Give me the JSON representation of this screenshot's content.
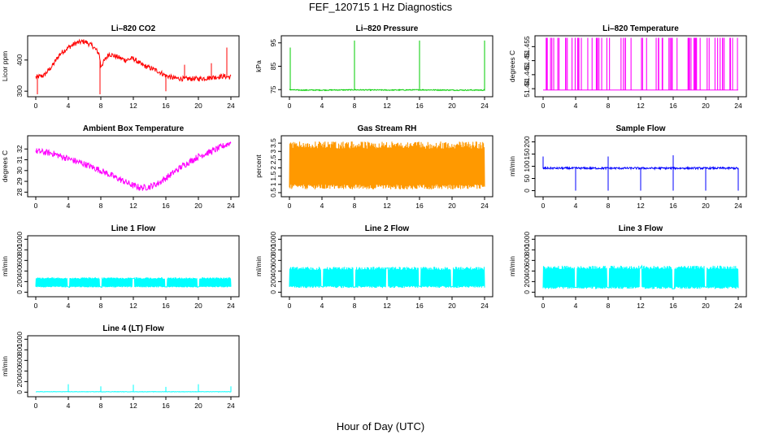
{
  "page": {
    "title": "FEF_120715  1 Hz Diagnostics",
    "xlabel": "Hour of Day (UTC)"
  },
  "chart_data": [
    {
      "id": "li820-co2",
      "type": "line",
      "title": "Li–820 CO2",
      "ylabel": "Licor ppm",
      "color": "#ff0000",
      "xlim": [
        0,
        24
      ],
      "xticks": [
        0,
        4,
        8,
        12,
        16,
        20,
        24
      ],
      "ylim": [
        290,
        470
      ],
      "yticks": [
        300,
        400
      ],
      "series": [
        {
          "x": [
            0,
            1,
            2,
            3,
            4,
            5,
            6,
            7,
            7.8,
            8,
            9,
            10,
            11,
            12,
            13,
            14,
            15,
            16,
            17,
            18,
            19,
            20,
            21,
            22,
            23,
            24
          ],
          "y": [
            345,
            350,
            380,
            420,
            440,
            455,
            460,
            445,
            420,
            380,
            420,
            410,
            400,
            405,
            385,
            375,
            365,
            350,
            342,
            340,
            340,
            340,
            342,
            345,
            348,
            345
          ]
        }
      ],
      "spikes": [
        {
          "x": 0.2,
          "y": 290
        },
        {
          "x": 7.9,
          "y": 290
        },
        {
          "x": 16,
          "y": 300
        },
        {
          "x": 18.3,
          "y": 385
        },
        {
          "x": 21.6,
          "y": 390
        },
        {
          "x": 23.5,
          "y": 440
        }
      ],
      "noise": 8
    },
    {
      "id": "li820-pressure",
      "type": "line",
      "title": "Li–820 Pressure",
      "ylabel": "kPa",
      "color": "#00cc00",
      "xlim": [
        0,
        24
      ],
      "xticks": [
        0,
        4,
        8,
        12,
        16,
        20,
        24
      ],
      "ylim": [
        73,
        97
      ],
      "yticks": [
        75,
        85,
        95
      ],
      "series": [
        {
          "x": [
            0,
            1,
            4,
            8,
            12,
            16,
            20,
            24
          ],
          "y": [
            75,
            74.8,
            74.8,
            74.9,
            74.8,
            74.9,
            74.8,
            74.8
          ]
        }
      ],
      "spikes": [
        {
          "x": 0.1,
          "y": 93
        },
        {
          "x": 8,
          "y": 96
        },
        {
          "x": 16,
          "y": 96
        },
        {
          "x": 24,
          "y": 96
        }
      ],
      "noise": 0.2
    },
    {
      "id": "li820-temperature",
      "type": "line",
      "title": "Li–820 Temperature",
      "ylabel": "degrees C",
      "color": "#ff00ff",
      "xlim": [
        0,
        24
      ],
      "xticks": [
        0,
        4,
        8,
        12,
        16,
        20,
        24
      ],
      "ylim": [
        51.438,
        51.458
      ],
      "yticks": [
        51.44,
        51.445,
        51.45,
        51.455
      ],
      "series": [
        {
          "x": [
            0,
            24
          ],
          "y": [
            51.4395,
            51.4395
          ]
        }
      ],
      "bands": {
        "low": 51.4395,
        "high": 51.4585,
        "count": 70
      },
      "noise": 0
    },
    {
      "id": "ambient-box-temperature",
      "type": "line",
      "title": "Ambient Box Temperature",
      "ylabel": "degrees C",
      "color": "#ff00ff",
      "xlim": [
        0,
        24
      ],
      "xticks": [
        0,
        4,
        8,
        12,
        16,
        20,
        24
      ],
      "ylim": [
        27.8,
        33
      ],
      "yticks": [
        28,
        29,
        30,
        31,
        32
      ],
      "series": [
        {
          "x": [
            0,
            2,
            4,
            6,
            8,
            10,
            12,
            13,
            14,
            15,
            16,
            18,
            20,
            22,
            24
          ],
          "y": [
            31.8,
            31.6,
            31.1,
            30.6,
            30.0,
            29.3,
            28.6,
            28.4,
            28.5,
            28.8,
            29.3,
            30.4,
            31.3,
            31.9,
            32.6
          ]
        }
      ],
      "noise": 0.3
    },
    {
      "id": "gas-stream-rh",
      "type": "line",
      "title": "Gas Stream RH",
      "ylabel": "percent",
      "color": "#ff9900",
      "xlim": [
        0,
        24
      ],
      "xticks": [
        0,
        4,
        8,
        12,
        16,
        20,
        24
      ],
      "ylim": [
        0.4,
        3.8
      ],
      "yticks": [
        0.5,
        1.0,
        1.5,
        2.0,
        2.5,
        3.0,
        3.5
      ],
      "series": [
        {
          "x": [
            0,
            24
          ],
          "y": [
            2.1,
            2.1
          ]
        }
      ],
      "band": {
        "low": 0.7,
        "high": 3.6
      },
      "noise": 0
    },
    {
      "id": "sample-flow",
      "type": "line",
      "title": "Sample Flow",
      "ylabel": "ml/min",
      "color": "#0000ff",
      "xlim": [
        0,
        24
      ],
      "xticks": [
        0,
        4,
        8,
        12,
        16,
        20,
        24
      ],
      "ylim": [
        -15,
        215
      ],
      "yticks": [
        0,
        50,
        100,
        150,
        200
      ],
      "series": [
        {
          "x": [
            0,
            24
          ],
          "y": [
            92,
            92
          ]
        }
      ],
      "spikes": [
        {
          "x": 0,
          "y": 140
        },
        {
          "x": 4,
          "y": 0
        },
        {
          "x": 8,
          "y": 0
        },
        {
          "x": 8,
          "y": 140
        },
        {
          "x": 12,
          "y": 0
        },
        {
          "x": 16,
          "y": 0
        },
        {
          "x": 16,
          "y": 145
        },
        {
          "x": 20,
          "y": 0
        },
        {
          "x": 24,
          "y": 0
        }
      ],
      "noise": 4
    },
    {
      "id": "line-1-flow",
      "type": "line",
      "title": "Line 1 Flow",
      "ylabel": "ml/min",
      "color": "#00ffff",
      "xlim": [
        0,
        24
      ],
      "xticks": [
        0,
        4,
        8,
        12,
        16,
        20,
        24
      ],
      "ylim": [
        -40,
        1020
      ],
      "yticks": [
        0,
        200,
        400,
        600,
        800,
        1000
      ],
      "series": [
        {
          "x": [
            0,
            24
          ],
          "y": [
            190,
            190
          ]
        }
      ],
      "band": {
        "low": 90,
        "high": 280
      },
      "gaps": [
        4,
        8,
        12,
        16,
        20
      ],
      "noise": 0
    },
    {
      "id": "line-2-flow",
      "type": "line",
      "title": "Line 2 Flow",
      "ylabel": "ml/min",
      "color": "#00ffff",
      "xlim": [
        0,
        24
      ],
      "xticks": [
        0,
        4,
        8,
        12,
        16,
        20,
        24
      ],
      "ylim": [
        -40,
        1020
      ],
      "yticks": [
        0,
        200,
        400,
        600,
        800,
        1000
      ],
      "series": [
        {
          "x": [
            0,
            24
          ],
          "y": [
            290,
            290
          ]
        }
      ],
      "band": {
        "low": 80,
        "high": 480
      },
      "gaps": [
        4,
        8,
        12,
        16,
        20
      ],
      "noise": 0
    },
    {
      "id": "line-3-flow",
      "type": "line",
      "title": "Line 3 Flow",
      "ylabel": "ml/min",
      "color": "#00ffff",
      "xlim": [
        0,
        24
      ],
      "xticks": [
        0,
        4,
        8,
        12,
        16,
        20,
        24
      ],
      "ylim": [
        -40,
        1020
      ],
      "yticks": [
        0,
        200,
        400,
        600,
        800,
        1000
      ],
      "series": [
        {
          "x": [
            0,
            24
          ],
          "y": [
            290,
            290
          ]
        }
      ],
      "band": {
        "low": 60,
        "high": 500
      },
      "gaps": [
        4,
        8,
        12,
        16,
        20
      ],
      "noise": 0
    },
    {
      "id": "line-4-flow",
      "type": "line",
      "title": "Line 4 (LT) Flow",
      "ylabel": "ml/min",
      "color": "#00ffff",
      "xlim": [
        0,
        24
      ],
      "xticks": [
        0,
        4,
        8,
        12,
        16,
        20,
        24
      ],
      "ylim": [
        -40,
        1020
      ],
      "yticks": [
        0,
        200,
        400,
        600,
        800,
        1000
      ],
      "series": [
        {
          "x": [
            0,
            24
          ],
          "y": [
            8,
            8
          ]
        }
      ],
      "spikes": [
        {
          "x": 4,
          "y": 150
        },
        {
          "x": 8,
          "y": 110
        },
        {
          "x": 12,
          "y": 140
        },
        {
          "x": 16,
          "y": 100
        },
        {
          "x": 20,
          "y": 150
        },
        {
          "x": 24,
          "y": 110
        }
      ],
      "noise": 3
    }
  ]
}
